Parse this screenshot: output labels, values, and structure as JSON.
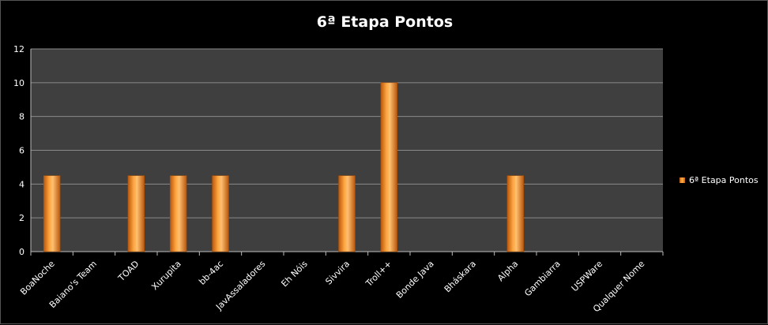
{
  "chart_data": {
    "type": "bar",
    "title": "6ª Etapa Pontos",
    "xlabel": "",
    "ylabel": "",
    "categories": [
      "BoaNoche",
      "Baiano's Team",
      "TOAD",
      "Xurupita",
      "bb-4ac",
      "JavAssaladores",
      "Eh Nóis",
      "Sivvira",
      "Troll++",
      "Bonde Java",
      "Bháskara",
      "Alpha",
      "Gambiarra",
      "USPWare",
      "Qualquer Nome"
    ],
    "series": [
      {
        "name": "6ª Etapa Pontos",
        "values": [
          4.5,
          0,
          4.5,
          4.5,
          4.5,
          0,
          0,
          4.5,
          10,
          0,
          0,
          4.5,
          0,
          0,
          0
        ]
      }
    ],
    "ylim": [
      0,
      12
    ],
    "yticks": [
      0,
      2,
      4,
      6,
      8,
      10,
      12
    ],
    "grid": true,
    "legend_position": "right",
    "colors": {
      "background": "#000000",
      "plot_area": "#3f3f3f",
      "gridline": "#8a8a8a",
      "bar": "#f7941d",
      "text": "#ffffff"
    }
  }
}
